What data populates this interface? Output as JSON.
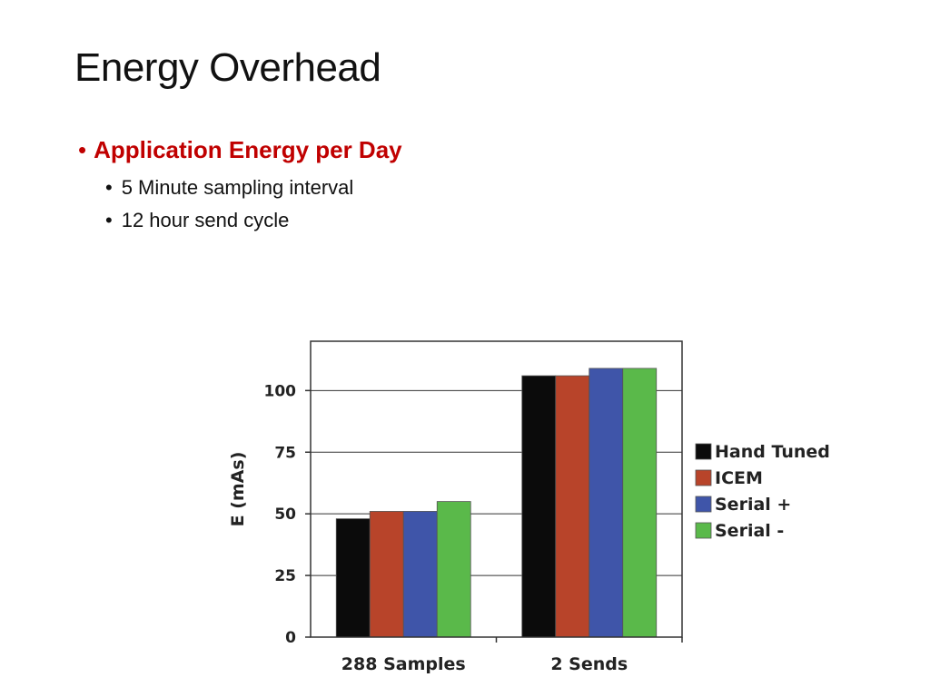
{
  "slide": {
    "title": "Energy Overhead",
    "bullet_main": "Application Energy per Day",
    "sub_bullets": [
      "5 Minute sampling interval",
      "12 hour send cycle"
    ],
    "bullet_char": "•"
  },
  "chart_data": {
    "type": "bar",
    "title": "",
    "xlabel": "",
    "ylabel": "E (mAs)",
    "ylim": [
      0,
      120
    ],
    "yticks": [
      0,
      25,
      50,
      75,
      100
    ],
    "grid": true,
    "legend_position": "right",
    "categories": [
      "288 Samples",
      "2 Sends"
    ],
    "series": [
      {
        "name": "Hand Tuned",
        "color": "#0b0b0b",
        "values": [
          48,
          106
        ]
      },
      {
        "name": "ICEM",
        "color": "#b8442a",
        "values": [
          51,
          106
        ]
      },
      {
        "name": "Serial +",
        "color": "#3f55a9",
        "values": [
          51,
          109
        ]
      },
      {
        "name": "Serial -",
        "color": "#5ab94a",
        "values": [
          55,
          109
        ]
      }
    ]
  }
}
